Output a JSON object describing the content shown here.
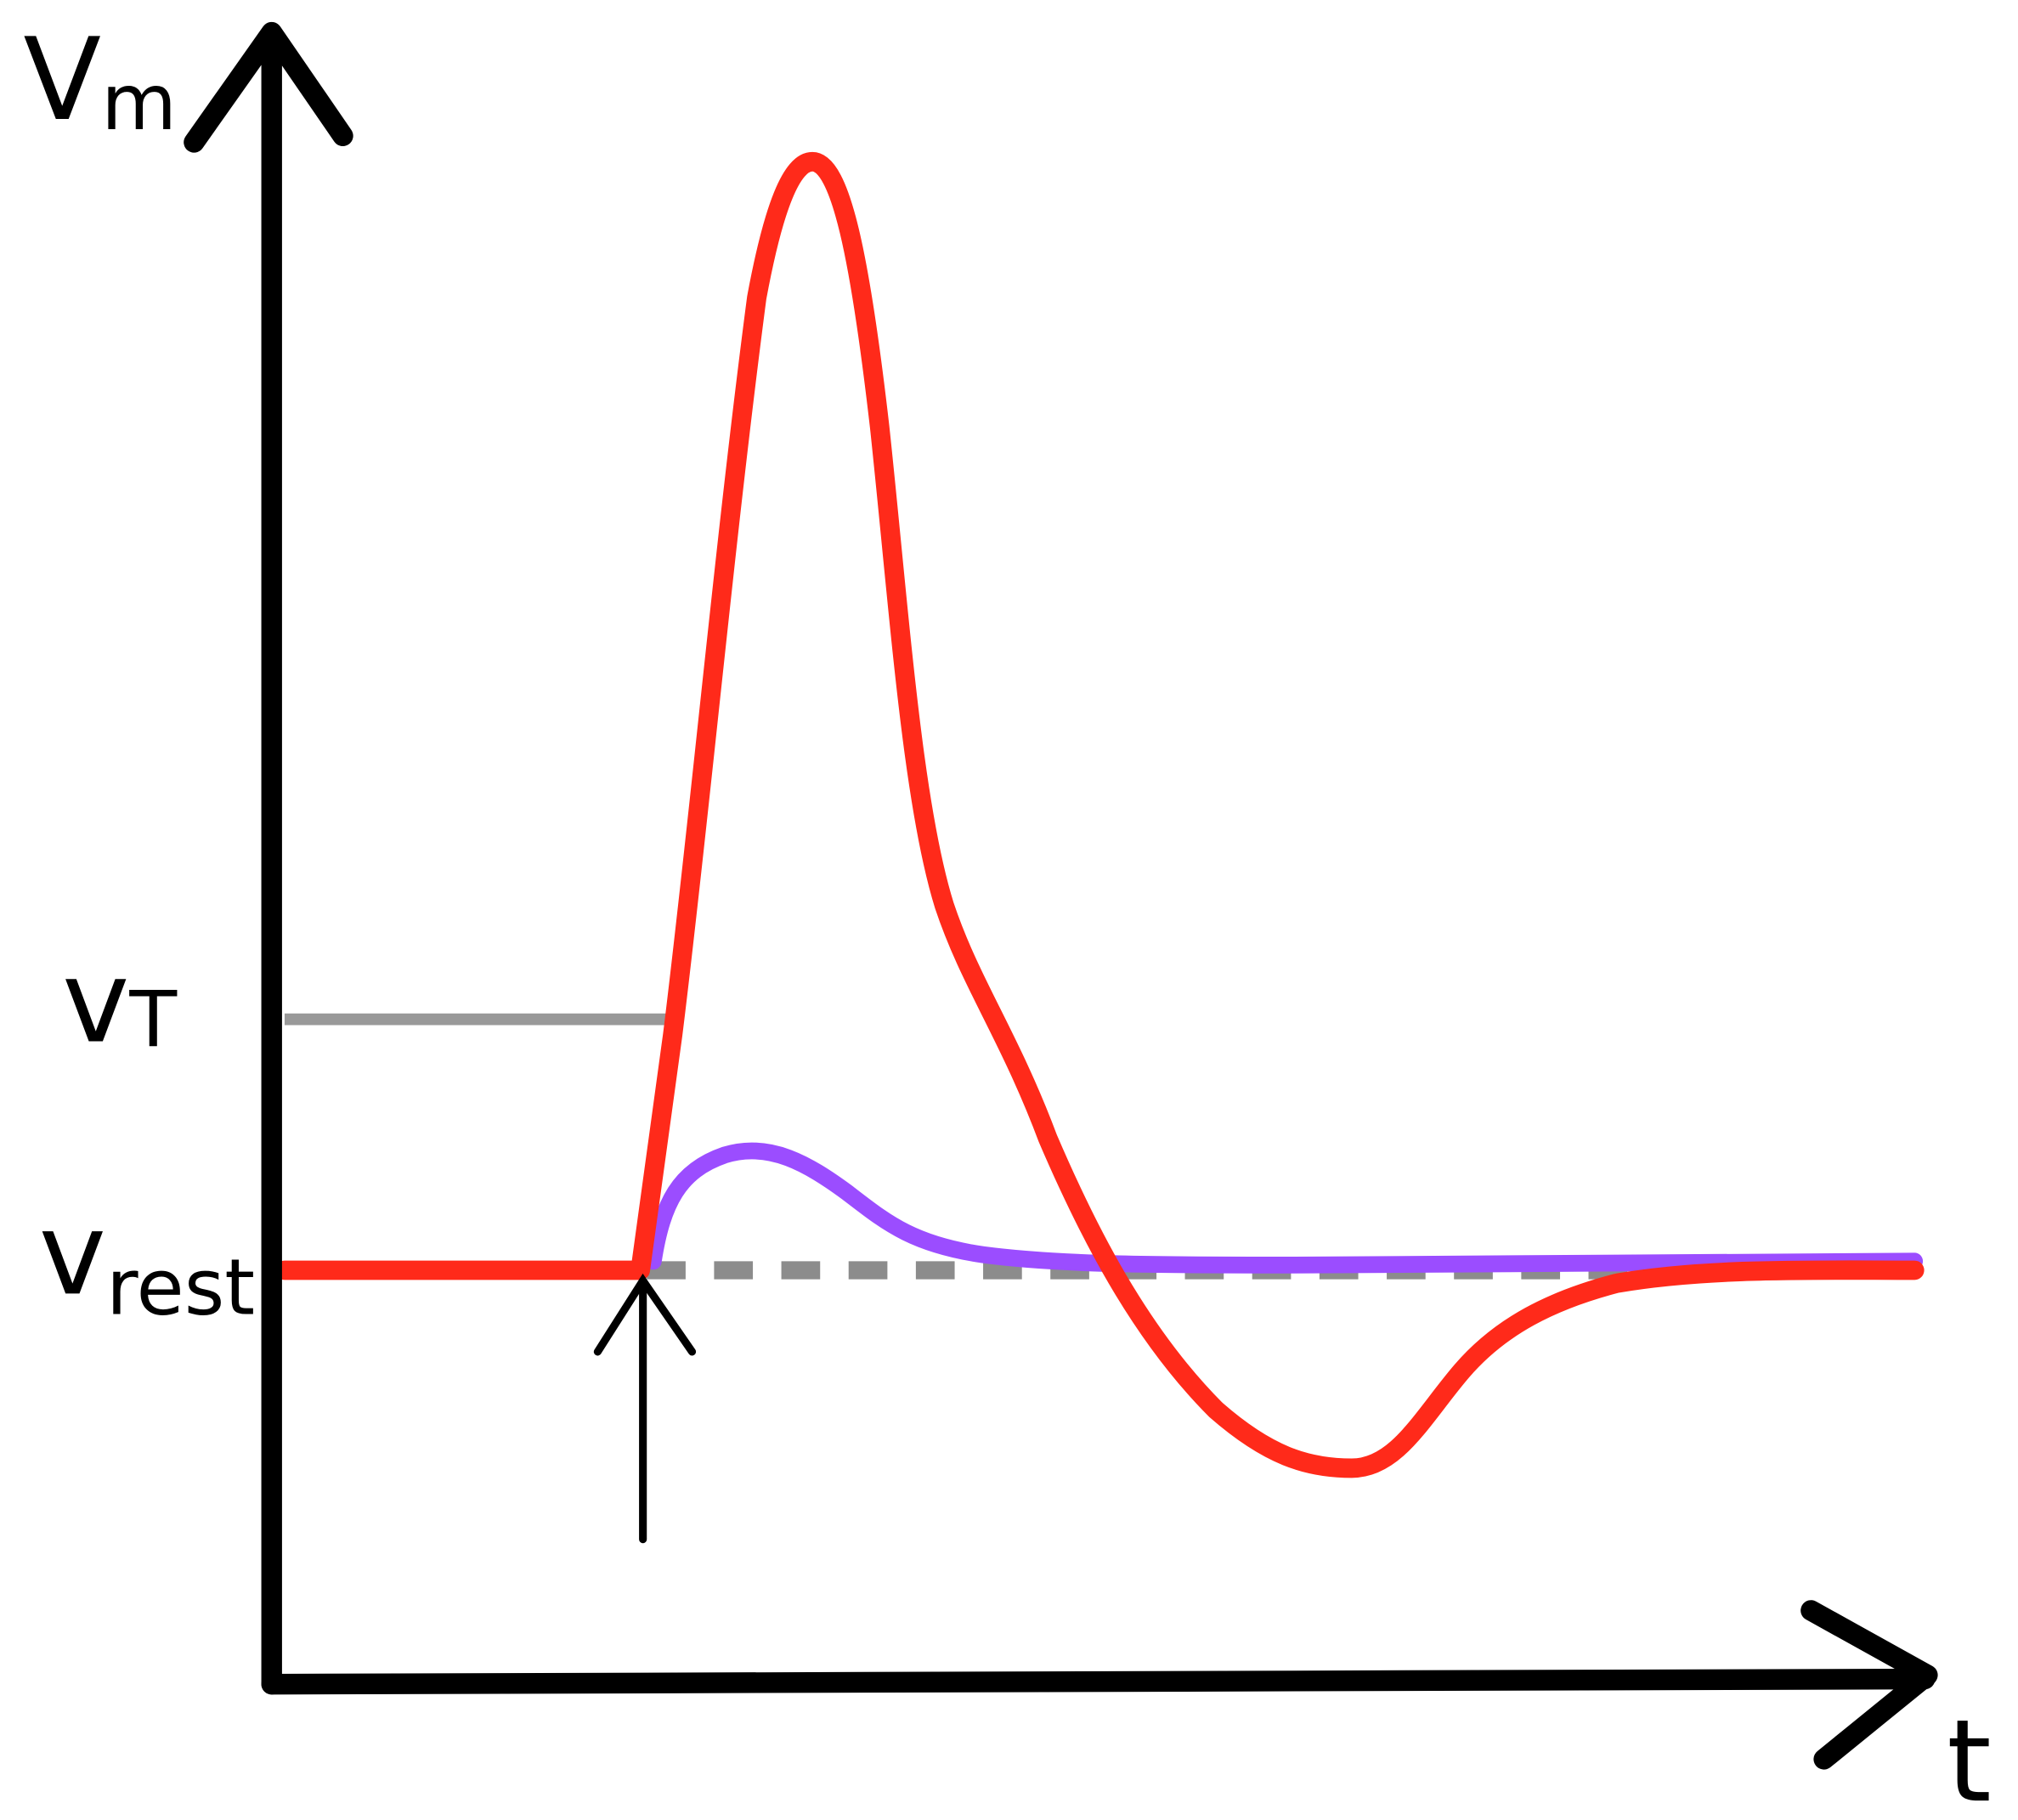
{
  "labels": {
    "y_axis": {
      "main": "V",
      "sub": "m"
    },
    "threshold": {
      "main": "v",
      "sub": "T"
    },
    "rest": {
      "main": "v",
      "sub": "rest"
    },
    "x_axis": "t"
  }
}
